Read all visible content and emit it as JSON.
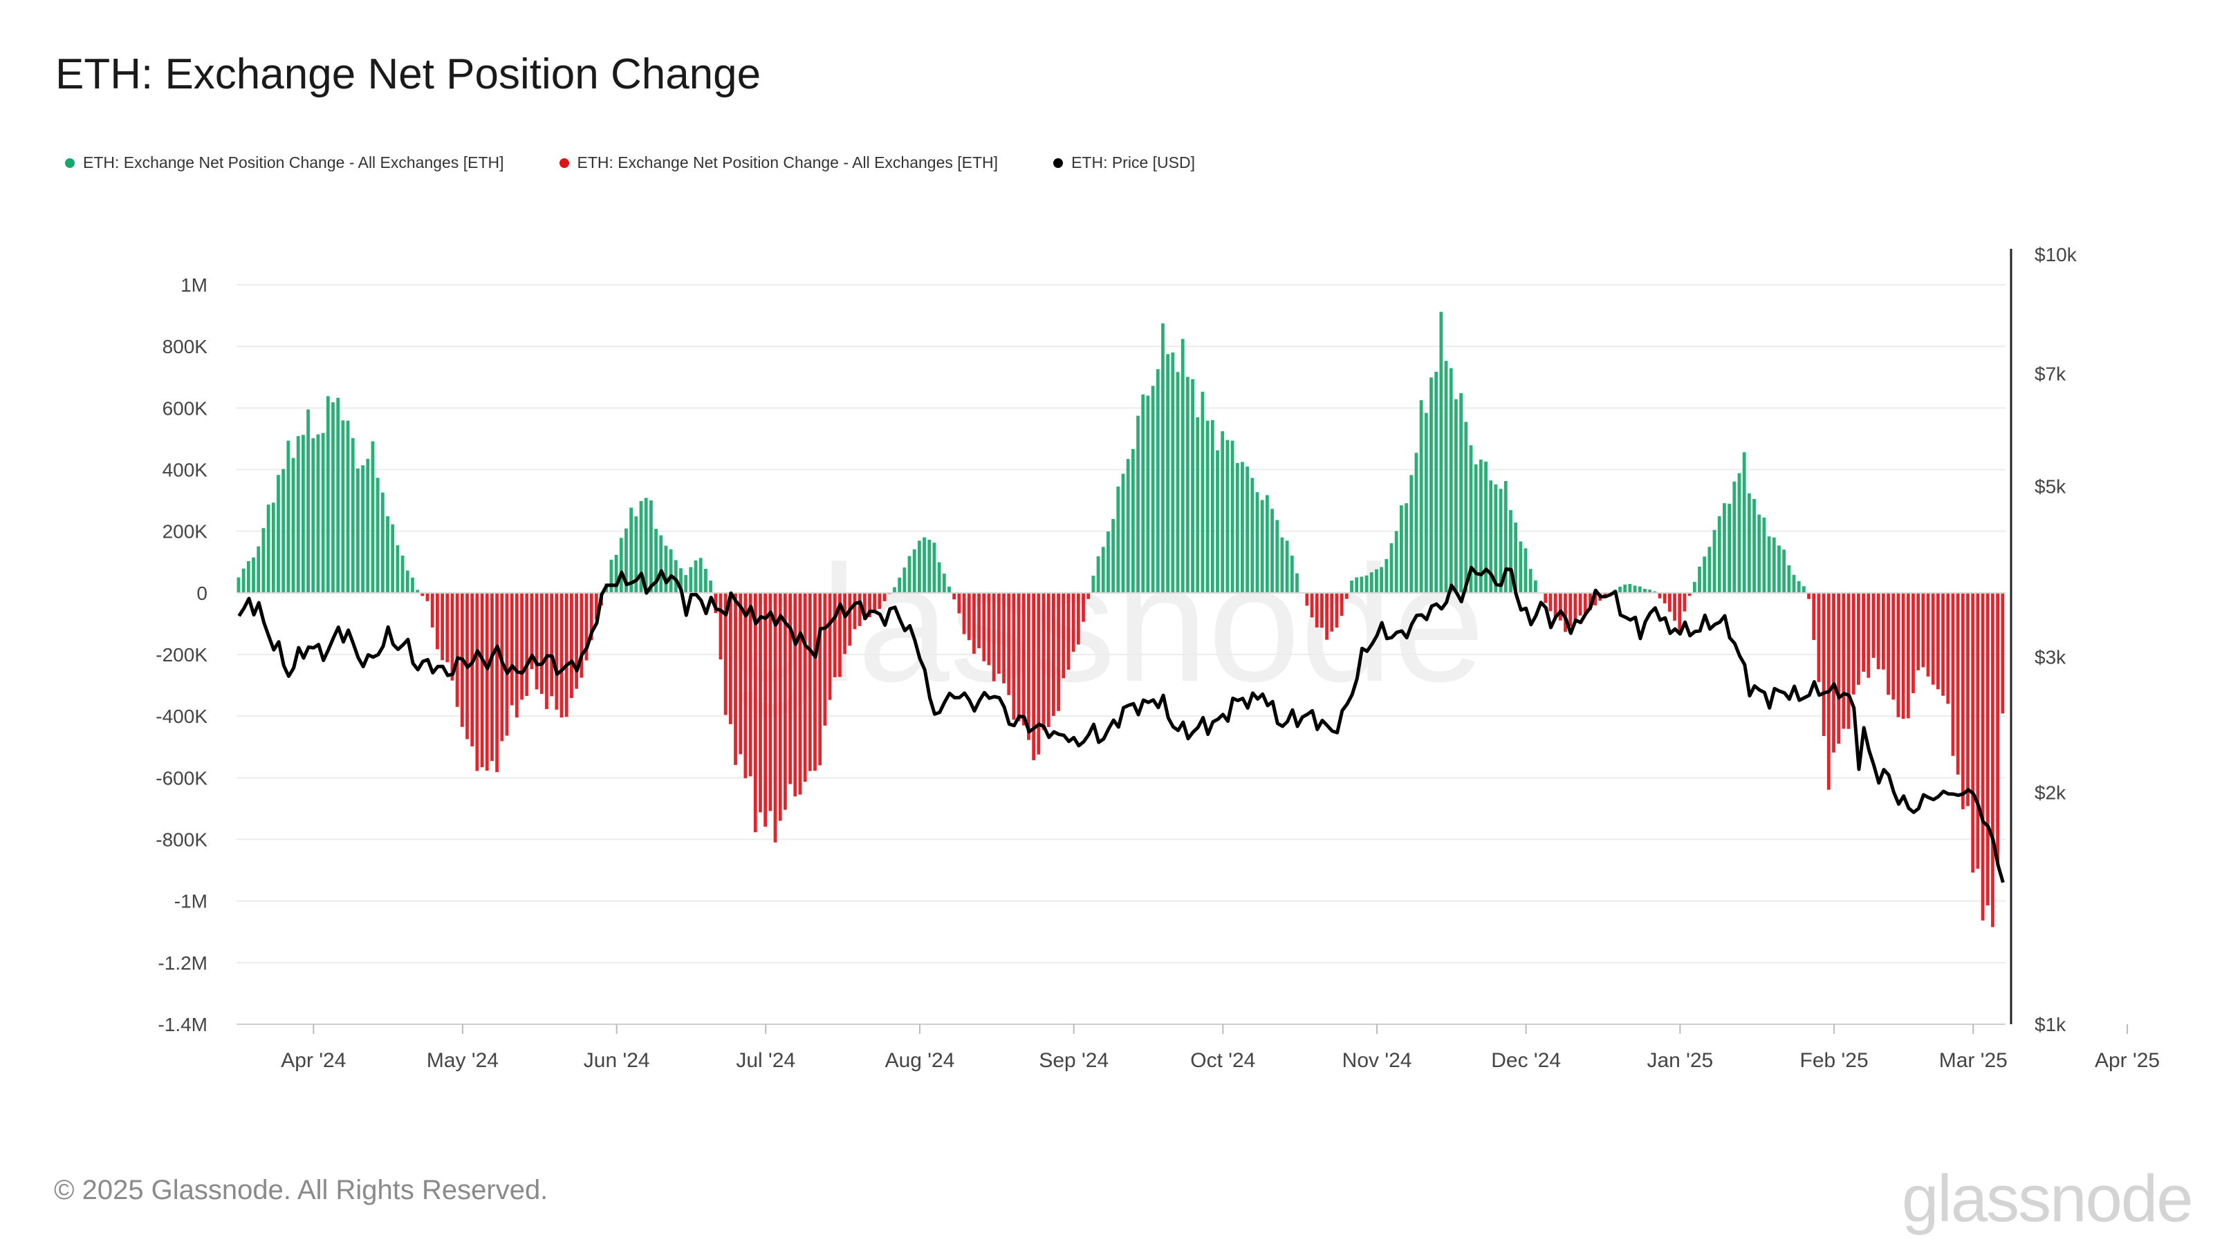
{
  "title": "ETH: Exchange Net Position Change",
  "legend": [
    {
      "label": "ETH: Exchange Net Position Change - All Exchanges [ETH]",
      "color": "#16a86a"
    },
    {
      "label": "ETH: Exchange Net Position Change - All Exchanges [ETH]",
      "color": "#e0121a"
    },
    {
      "label": "ETH: Price [USD]",
      "color": "#000000"
    }
  ],
  "footer": "© 2025 Glassnode. All Rights Reserved.",
  "brand": "glassnode",
  "watermark": "glassnode",
  "chart_data": {
    "type": "bar",
    "title": "ETH: Exchange Net Position Change",
    "y_left": {
      "min": -1400000,
      "max": 1000000,
      "ticks": [
        "1M",
        "800K",
        "600K",
        "400K",
        "200K",
        "0",
        "-200K",
        "-400K",
        "-600K",
        "-800K",
        "-1M",
        "-1.2M",
        "-1.4M"
      ],
      "tick_values": [
        1000000,
        800000,
        600000,
        400000,
        200000,
        0,
        -200000,
        -400000,
        -600000,
        -800000,
        -1000000,
        -1200000,
        -1400000
      ]
    },
    "y_right": {
      "scale": "log",
      "min": 1000,
      "max": 10000,
      "ticks": [
        "$10k",
        "$7k",
        "$5k",
        "$3k",
        "$2k",
        "$1k"
      ],
      "tick_values": [
        10000,
        7000,
        5000,
        3000,
        2000,
        1000
      ]
    },
    "x_ticks": [
      "Apr '24",
      "May '24",
      "Jun '24",
      "Jul '24",
      "Aug '24",
      "Sep '24",
      "Oct '24",
      "Nov '24",
      "Dec '24",
      "Jan '25",
      "Feb '25",
      "Mar '25",
      "Apr '25"
    ],
    "x_tick_days": [
      15,
      45,
      76,
      106,
      137,
      168,
      198,
      229,
      259,
      290,
      321,
      349,
      380
    ],
    "anchors_netflow": [
      [
        0,
        50000
      ],
      [
        4,
        150000
      ],
      [
        8,
        380000
      ],
      [
        13,
        540000
      ],
      [
        16,
        520000
      ],
      [
        20,
        650000
      ],
      [
        24,
        420000
      ],
      [
        27,
        450000
      ],
      [
        29,
        330000
      ],
      [
        31,
        200000
      ],
      [
        34,
        80000
      ],
      [
        36,
        10000
      ],
      [
        38,
        -30000
      ],
      [
        40,
        -180000
      ],
      [
        43,
        -280000
      ],
      [
        46,
        -500000
      ],
      [
        49,
        -560000
      ],
      [
        51,
        -600000
      ],
      [
        53,
        -480000
      ],
      [
        56,
        -380000
      ],
      [
        59,
        -280000
      ],
      [
        62,
        -350000
      ],
      [
        65,
        -400000
      ],
      [
        68,
        -330000
      ],
      [
        71,
        -150000
      ],
      [
        73,
        -40000
      ],
      [
        75,
        100000
      ],
      [
        79,
        250000
      ],
      [
        82,
        320000
      ],
      [
        84,
        220000
      ],
      [
        87,
        130000
      ],
      [
        90,
        60000
      ],
      [
        93,
        120000
      ],
      [
        95,
        40000
      ],
      [
        96,
        -60000
      ],
      [
        98,
        -400000
      ],
      [
        101,
        -550000
      ],
      [
        104,
        -700000
      ],
      [
        107,
        -780000
      ],
      [
        110,
        -700000
      ],
      [
        113,
        -620000
      ],
      [
        116,
        -600000
      ],
      [
        119,
        -350000
      ],
      [
        122,
        -200000
      ],
      [
        125,
        -100000
      ],
      [
        129,
        -50000
      ],
      [
        132,
        20000
      ],
      [
        134,
        80000
      ],
      [
        137,
        180000
      ],
      [
        140,
        160000
      ],
      [
        142,
        60000
      ],
      [
        144,
        -20000
      ],
      [
        146,
        -130000
      ],
      [
        148,
        -180000
      ],
      [
        151,
        -240000
      ],
      [
        154,
        -300000
      ],
      [
        157,
        -420000
      ],
      [
        160,
        -520000
      ],
      [
        162,
        -480000
      ],
      [
        164,
        -400000
      ],
      [
        166,
        -300000
      ],
      [
        168,
        -200000
      ],
      [
        170,
        -100000
      ],
      [
        172,
        60000
      ],
      [
        175,
        200000
      ],
      [
        178,
        380000
      ],
      [
        181,
        560000
      ],
      [
        184,
        700000
      ],
      [
        186,
        800000
      ],
      [
        189,
        780000
      ],
      [
        192,
        680000
      ],
      [
        195,
        560000
      ],
      [
        198,
        500000
      ],
      [
        201,
        460000
      ],
      [
        204,
        360000
      ],
      [
        207,
        300000
      ],
      [
        210,
        200000
      ],
      [
        212,
        120000
      ],
      [
        214,
        0
      ],
      [
        216,
        -80000
      ],
      [
        219,
        -150000
      ],
      [
        222,
        -80000
      ],
      [
        224,
        40000
      ],
      [
        227,
        60000
      ],
      [
        230,
        80000
      ],
      [
        233,
        200000
      ],
      [
        236,
        380000
      ],
      [
        238,
        560000
      ],
      [
        240,
        700000
      ],
      [
        242,
        820000
      ],
      [
        244,
        740000
      ],
      [
        246,
        600000
      ],
      [
        249,
        440000
      ],
      [
        252,
        380000
      ],
      [
        255,
        330000
      ],
      [
        258,
        180000
      ],
      [
        260,
        80000
      ],
      [
        262,
        0
      ],
      [
        264,
        -60000
      ],
      [
        267,
        -120000
      ],
      [
        270,
        -80000
      ],
      [
        273,
        -40000
      ],
      [
        276,
        0
      ],
      [
        279,
        30000
      ],
      [
        282,
        20000
      ],
      [
        285,
        5000
      ],
      [
        288,
        -60000
      ],
      [
        290,
        -120000
      ],
      [
        292,
        -10000
      ],
      [
        294,
        80000
      ],
      [
        297,
        200000
      ],
      [
        300,
        320000
      ],
      [
        303,
        420000
      ],
      [
        305,
        300000
      ],
      [
        307,
        220000
      ],
      [
        310,
        160000
      ],
      [
        313,
        60000
      ],
      [
        315,
        20000
      ],
      [
        316,
        -20000
      ],
      [
        318,
        -300000
      ],
      [
        320,
        -600000
      ],
      [
        323,
        -450000
      ],
      [
        326,
        -300000
      ],
      [
        329,
        -220000
      ],
      [
        332,
        -300000
      ],
      [
        335,
        -450000
      ],
      [
        338,
        -250000
      ],
      [
        341,
        -280000
      ],
      [
        344,
        -380000
      ],
      [
        347,
        -700000
      ],
      [
        350,
        -900000
      ],
      [
        352,
        -1150000
      ],
      [
        354,
        -880000
      ],
      [
        355,
        -370000
      ]
    ],
    "anchors_price": [
      [
        0,
        3350
      ],
      [
        2,
        3550
      ],
      [
        4,
        3450
      ],
      [
        6,
        3200
      ],
      [
        8,
        3050
      ],
      [
        10,
        2850
      ],
      [
        12,
        3000
      ],
      [
        14,
        3100
      ],
      [
        16,
        3050
      ],
      [
        18,
        3050
      ],
      [
        20,
        3250
      ],
      [
        22,
        3200
      ],
      [
        24,
        3000
      ],
      [
        26,
        2950
      ],
      [
        28,
        3050
      ],
      [
        30,
        3200
      ],
      [
        32,
        3100
      ],
      [
        34,
        3100
      ],
      [
        36,
        2900
      ],
      [
        38,
        2950
      ],
      [
        40,
        2900
      ],
      [
        42,
        2850
      ],
      [
        44,
        2950
      ],
      [
        46,
        2950
      ],
      [
        48,
        3000
      ],
      [
        50,
        2950
      ],
      [
        52,
        3050
      ],
      [
        54,
        2900
      ],
      [
        56,
        2850
      ],
      [
        58,
        2950
      ],
      [
        60,
        2950
      ],
      [
        62,
        3000
      ],
      [
        64,
        2900
      ],
      [
        66,
        2900
      ],
      [
        68,
        2950
      ],
      [
        70,
        3050
      ],
      [
        72,
        3400
      ],
      [
        74,
        3700
      ],
      [
        76,
        3780
      ],
      [
        78,
        3750
      ],
      [
        80,
        3800
      ],
      [
        82,
        3700
      ],
      [
        84,
        3750
      ],
      [
        86,
        3850
      ],
      [
        88,
        3750
      ],
      [
        90,
        3500
      ],
      [
        92,
        3600
      ],
      [
        94,
        3500
      ],
      [
        96,
        3480
      ],
      [
        98,
        3450
      ],
      [
        100,
        3600
      ],
      [
        102,
        3400
      ],
      [
        104,
        3400
      ],
      [
        106,
        3350
      ],
      [
        108,
        3400
      ],
      [
        110,
        3300
      ],
      [
        112,
        3200
      ],
      [
        114,
        3100
      ],
      [
        116,
        3050
      ],
      [
        118,
        3300
      ],
      [
        120,
        3400
      ],
      [
        122,
        3450
      ],
      [
        124,
        3500
      ],
      [
        126,
        3450
      ],
      [
        128,
        3400
      ],
      [
        130,
        3380
      ],
      [
        132,
        3450
      ],
      [
        134,
        3300
      ],
      [
        136,
        3150
      ],
      [
        138,
        2900
      ],
      [
        139,
        2600
      ],
      [
        140,
        2550
      ],
      [
        142,
        2600
      ],
      [
        144,
        2700
      ],
      [
        146,
        2650
      ],
      [
        148,
        2600
      ],
      [
        150,
        2650
      ],
      [
        152,
        2700
      ],
      [
        154,
        2550
      ],
      [
        156,
        2450
      ],
      [
        158,
        2500
      ],
      [
        160,
        2400
      ],
      [
        162,
        2450
      ],
      [
        164,
        2350
      ],
      [
        166,
        2400
      ],
      [
        168,
        2300
      ],
      [
        170,
        2350
      ],
      [
        172,
        2400
      ],
      [
        174,
        2350
      ],
      [
        176,
        2450
      ],
      [
        178,
        2550
      ],
      [
        180,
        2600
      ],
      [
        182,
        2580
      ],
      [
        184,
        2650
      ],
      [
        186,
        2600
      ],
      [
        188,
        2450
      ],
      [
        190,
        2400
      ],
      [
        192,
        2400
      ],
      [
        194,
        2450
      ],
      [
        196,
        2450
      ],
      [
        198,
        2500
      ],
      [
        200,
        2600
      ],
      [
        202,
        2650
      ],
      [
        204,
        2620
      ],
      [
        206,
        2700
      ],
      [
        208,
        2550
      ],
      [
        210,
        2450
      ],
      [
        212,
        2500
      ],
      [
        214,
        2500
      ],
      [
        216,
        2520
      ],
      [
        218,
        2450
      ],
      [
        220,
        2400
      ],
      [
        222,
        2500
      ],
      [
        224,
        2700
      ],
      [
        226,
        3000
      ],
      [
        228,
        3150
      ],
      [
        230,
        3250
      ],
      [
        232,
        3200
      ],
      [
        234,
        3200
      ],
      [
        236,
        3300
      ],
      [
        238,
        3400
      ],
      [
        240,
        3450
      ],
      [
        242,
        3500
      ],
      [
        244,
        3650
      ],
      [
        246,
        3600
      ],
      [
        248,
        3850
      ],
      [
        250,
        3900
      ],
      [
        252,
        3800
      ],
      [
        254,
        3750
      ],
      [
        256,
        3900
      ],
      [
        258,
        3450
      ],
      [
        260,
        3350
      ],
      [
        262,
        3500
      ],
      [
        264,
        3350
      ],
      [
        266,
        3400
      ],
      [
        268,
        3300
      ],
      [
        270,
        3300
      ],
      [
        272,
        3550
      ],
      [
        274,
        3600
      ],
      [
        276,
        3650
      ],
      [
        278,
        3450
      ],
      [
        280,
        3350
      ],
      [
        282,
        3250
      ],
      [
        284,
        3400
      ],
      [
        286,
        3450
      ],
      [
        288,
        3200
      ],
      [
        290,
        3300
      ],
      [
        292,
        3200
      ],
      [
        294,
        3300
      ],
      [
        296,
        3300
      ],
      [
        298,
        3350
      ],
      [
        300,
        3250
      ],
      [
        302,
        3000
      ],
      [
        304,
        2750
      ],
      [
        306,
        2700
      ],
      [
        308,
        2650
      ],
      [
        310,
        2700
      ],
      [
        312,
        2700
      ],
      [
        314,
        2650
      ],
      [
        316,
        2700
      ],
      [
        318,
        2720
      ],
      [
        320,
        2700
      ],
      [
        322,
        2720
      ],
      [
        324,
        2650
      ],
      [
        325,
        2550
      ],
      [
        326,
        2200
      ],
      [
        327,
        2400
      ],
      [
        328,
        2250
      ],
      [
        330,
        2100
      ],
      [
        332,
        2100
      ],
      [
        334,
        1950
      ],
      [
        336,
        1920
      ],
      [
        338,
        1900
      ],
      [
        340,
        2000
      ],
      [
        342,
        1950
      ],
      [
        344,
        2030
      ],
      [
        346,
        1950
      ],
      [
        348,
        2050
      ],
      [
        350,
        1900
      ],
      [
        352,
        1820
      ],
      [
        354,
        1600
      ],
      [
        355,
        1560
      ]
    ]
  }
}
